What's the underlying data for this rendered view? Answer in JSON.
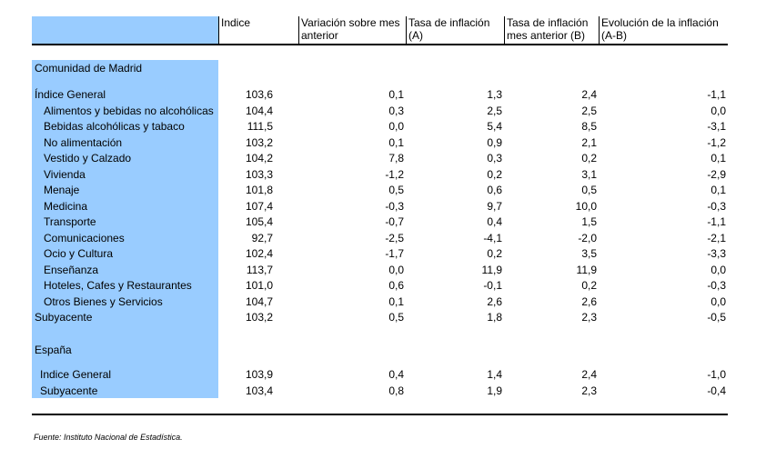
{
  "headers": {
    "indice": "Indice",
    "variacion": [
      "Variación sobre mes",
      "anterior"
    ],
    "tasa": [
      "Tasa de inflación",
      "(A)"
    ],
    "tasa_anterior": [
      "Tasa de inflación",
      "mes anterior (B)"
    ],
    "evolucion": [
      "Evolución de la inflación",
      "(A-B)"
    ]
  },
  "madrid": {
    "title": "Comunidad de Madrid",
    "rows": [
      {
        "label": "Índice General",
        "indice": "103,6",
        "variacion": "0,1",
        "tasa": "1,3",
        "tasa_anterior": "2,4",
        "evolucion": "-1,1"
      },
      {
        "label": "Alimentos y bebidas no alcohólicas",
        "indice": "104,4",
        "variacion": "0,3",
        "tasa": "2,5",
        "tasa_anterior": "2,5",
        "evolucion": "0,0"
      },
      {
        "label": "Bebidas alcohólicas y tabaco",
        "indice": "111,5",
        "variacion": "0,0",
        "tasa": "5,4",
        "tasa_anterior": "8,5",
        "evolucion": "-3,1"
      },
      {
        "label": "No alimentación",
        "indice": "103,2",
        "variacion": "0,1",
        "tasa": "0,9",
        "tasa_anterior": "2,1",
        "evolucion": "-1,2"
      },
      {
        "label": "Vestido y Calzado",
        "indice": "104,2",
        "variacion": "7,8",
        "tasa": "0,3",
        "tasa_anterior": "0,2",
        "evolucion": "0,1"
      },
      {
        "label": "Vivienda",
        "indice": "103,3",
        "variacion": "-1,2",
        "tasa": "0,2",
        "tasa_anterior": "3,1",
        "evolucion": "-2,9"
      },
      {
        "label": "Menaje",
        "indice": "101,8",
        "variacion": "0,5",
        "tasa": "0,6",
        "tasa_anterior": "0,5",
        "evolucion": "0,1"
      },
      {
        "label": "Medicina",
        "indice": "107,4",
        "variacion": "-0,3",
        "tasa": "9,7",
        "tasa_anterior": "10,0",
        "evolucion": "-0,3"
      },
      {
        "label": "Transporte",
        "indice": "105,4",
        "variacion": "-0,7",
        "tasa": "0,4",
        "tasa_anterior": "1,5",
        "evolucion": "-1,1"
      },
      {
        "label": "Comunicaciones",
        "indice": "92,7",
        "variacion": "-2,5",
        "tasa": "-4,1",
        "tasa_anterior": "-2,0",
        "evolucion": "-2,1"
      },
      {
        "label": "Ocio y Cultura",
        "indice": "102,4",
        "variacion": "-1,7",
        "tasa": "0,2",
        "tasa_anterior": "3,5",
        "evolucion": "-3,3"
      },
      {
        "label": "Enseñanza",
        "indice": "113,7",
        "variacion": "0,0",
        "tasa": "11,9",
        "tasa_anterior": "11,9",
        "evolucion": "0,0"
      },
      {
        "label": "Hoteles, Cafes y Restaurantes",
        "indice": "101,0",
        "variacion": "0,6",
        "tasa": "-0,1",
        "tasa_anterior": "0,2",
        "evolucion": "-0,3"
      },
      {
        "label": "Otros Bienes y Servicios",
        "indice": "104,7",
        "variacion": "0,1",
        "tasa": "2,6",
        "tasa_anterior": "2,6",
        "evolucion": "0,0"
      },
      {
        "label": "Subyacente",
        "indice": "103,2",
        "variacion": "0,5",
        "tasa": "1,8",
        "tasa_anterior": "2,3",
        "evolucion": "-0,5"
      }
    ]
  },
  "espana": {
    "title": "España",
    "rows": [
      {
        "label": "Indice General",
        "indice": "103,9",
        "variacion": "0,4",
        "tasa": "1,4",
        "tasa_anterior": "2,4",
        "evolucion": "-1,0"
      },
      {
        "label": "Subyacente",
        "indice": "103,4",
        "variacion": "0,8",
        "tasa": "1,9",
        "tasa_anterior": "2,3",
        "evolucion": "-0,4"
      }
    ]
  },
  "source": "Fuente: Instituto Nacional de Estadística.",
  "colors": {
    "label_bg": "#99ccff",
    "rule": "#000000"
  }
}
